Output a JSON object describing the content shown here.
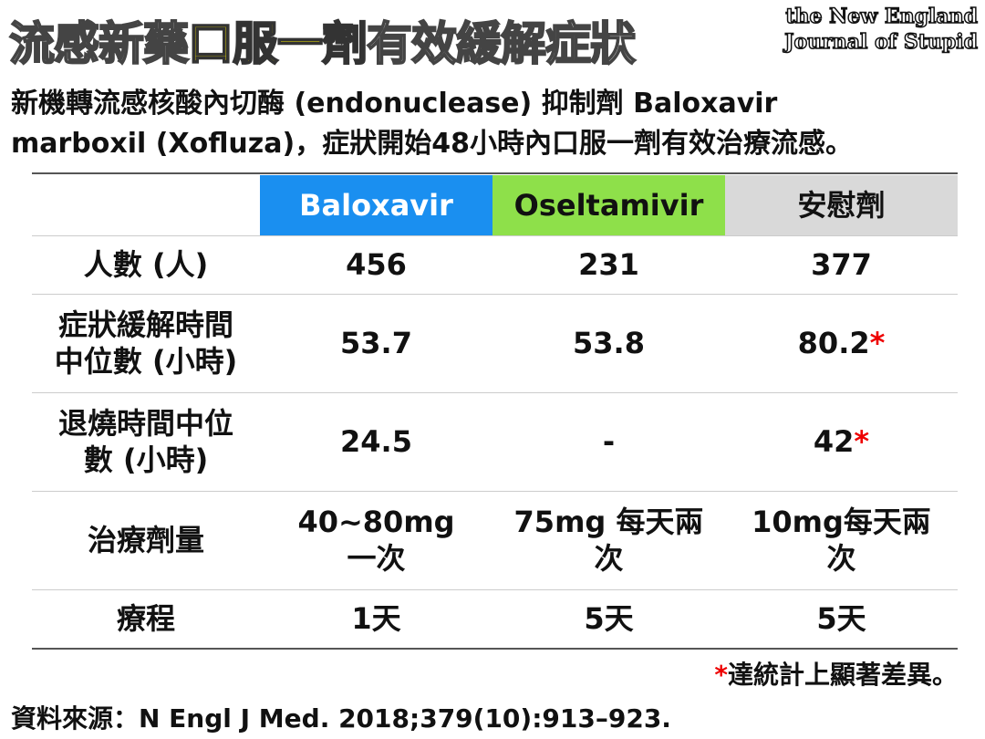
{
  "header": {
    "title": [
      "流感新藥",
      "口服一劑",
      "有效緩解症狀"
    ],
    "logo": [
      "the New England",
      "Journal of Stupid"
    ]
  },
  "subtitle": [
    "新機轉流感核酸內切酶 (endonuclease) 抑制劑 Baloxavir",
    "marboxil (Xofluza)，症狀開始48小時內口服一劑有效治療流感。"
  ],
  "table": {
    "columns": [
      "Baloxavir",
      "Oseltamivir",
      "安慰劑"
    ],
    "rows": [
      {
        "label": [
          "人數 (人)"
        ],
        "cells": [
          [
            "456"
          ],
          [
            "231"
          ],
          [
            "377"
          ]
        ]
      },
      {
        "label": [
          "症狀緩解時間",
          "中位數 (小時)"
        ],
        "cells": [
          [
            "53.7"
          ],
          [
            "53.8"
          ],
          [
            "80.2"
          ]
        ],
        "notes": [
          null,
          null,
          "*"
        ]
      },
      {
        "label": [
          "退燒時間中位",
          "數 (小時)"
        ],
        "cells": [
          [
            "24.5"
          ],
          [
            "-"
          ],
          [
            "42"
          ]
        ],
        "notes": [
          null,
          null,
          "*"
        ]
      },
      {
        "label": [
          "治療劑量"
        ],
        "cells": [
          [
            "40~80mg",
            "一次"
          ],
          [
            "75mg 每天兩",
            "次"
          ],
          [
            "10mg每天兩",
            "次"
          ]
        ]
      },
      {
        "label": [
          "療程"
        ],
        "cells": [
          [
            "1天"
          ],
          [
            "5天"
          ],
          [
            "5天"
          ]
        ]
      }
    ]
  },
  "footnote": {
    "mark": "*",
    "text": "達統計上顯著差異。"
  },
  "source": "資料來源：N Engl J Med. 2018;379(10):913–923."
}
